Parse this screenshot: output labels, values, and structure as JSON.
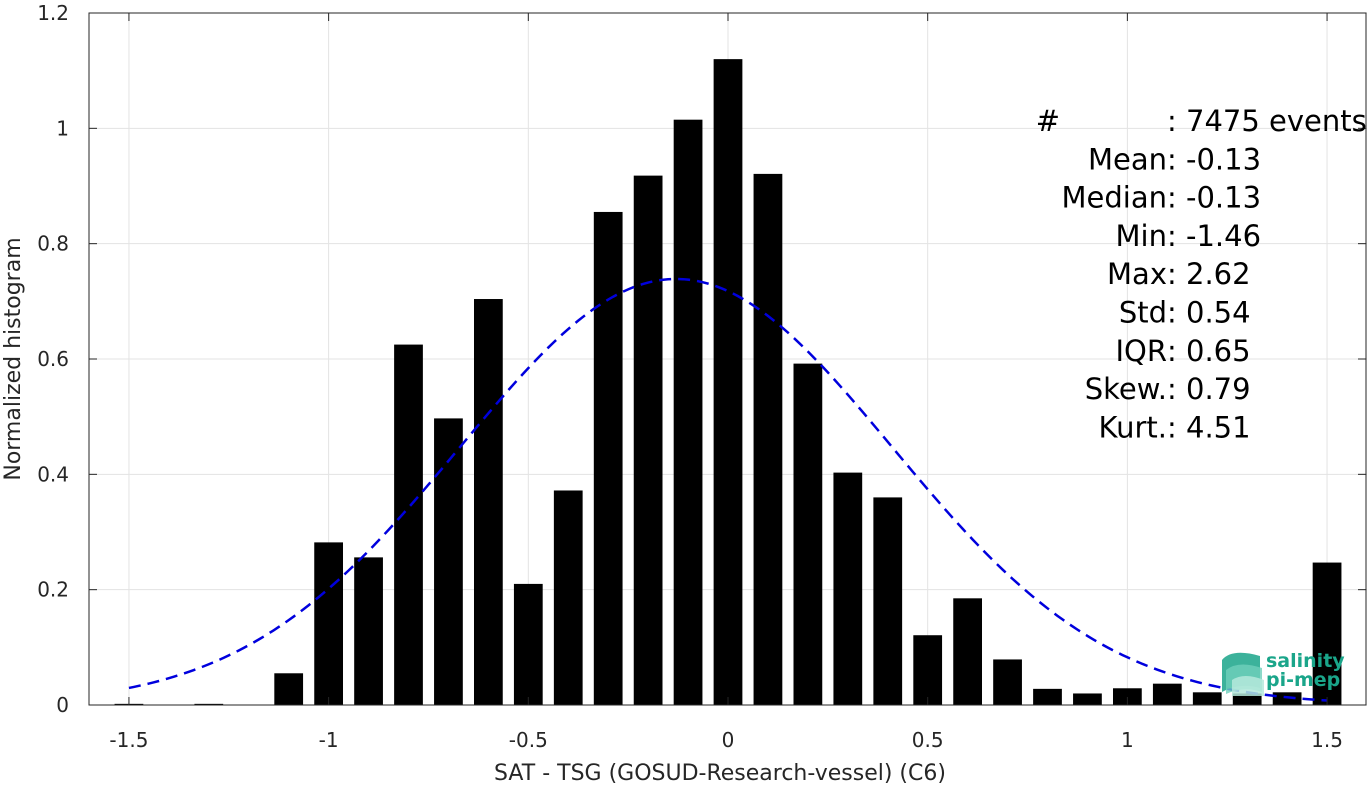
{
  "chart_data": {
    "type": "bar",
    "xlabel": "SAT - TSG (GOSUD-Research-vessel) (C6)",
    "ylabel": "Normalized histogram",
    "xlim": [
      -1.6,
      1.6
    ],
    "ylim": [
      0,
      1.2
    ],
    "xticks": [
      -1.5,
      -1,
      -0.5,
      0,
      0.5,
      1,
      1.5
    ],
    "xtick_labels": [
      "-1.5",
      "-1",
      "-0.5",
      "0",
      "0.5",
      "1",
      "1.5"
    ],
    "yticks": [
      0,
      0.2,
      0.4,
      0.6,
      0.8,
      1,
      1.2
    ],
    "ytick_labels": [
      "0",
      "0.2",
      "0.4",
      "0.6",
      "0.8",
      "1",
      "1.2"
    ],
    "grid": true,
    "bar_color": "#000000",
    "bin_width": 0.1,
    "x": [
      -1.5,
      -1.4,
      -1.3,
      -1.2,
      -1.1,
      -1.0,
      -0.9,
      -0.8,
      -0.7,
      -0.6,
      -0.5,
      -0.4,
      -0.3,
      -0.2,
      -0.1,
      0.0,
      0.1,
      0.2,
      0.3,
      0.4,
      0.5,
      0.6,
      0.7,
      0.8,
      0.9,
      1.0,
      1.1,
      1.2,
      1.3,
      1.4,
      1.5
    ],
    "values": [
      0.002,
      0.0,
      0.002,
      0.0,
      0.055,
      0.282,
      0.256,
      0.625,
      0.497,
      0.704,
      0.21,
      0.372,
      0.855,
      0.918,
      1.015,
      1.12,
      0.921,
      0.592,
      0.403,
      0.36,
      0.121,
      0.185,
      0.079,
      0.028,
      0.02,
      0.029,
      0.037,
      0.022,
      0.02,
      0.022,
      0.247
    ],
    "fit": {
      "type": "gaussian",
      "mean": -0.13,
      "std": 0.54,
      "x_range": [
        -1.5,
        1.5
      ],
      "color": "#0000dd",
      "linestyle": "dashed"
    },
    "annotations": [
      {
        "label": "#  ",
        "value": ": 7475 events"
      },
      {
        "label": "Mean ",
        "value": ": -0.13"
      },
      {
        "label": "Median ",
        "value": ": -0.13"
      },
      {
        "label": "Min ",
        "value": ": -1.46"
      },
      {
        "label": "Max ",
        "value": ": 2.62"
      },
      {
        "label": "Std ",
        "value": ": 0.54"
      },
      {
        "label": "IQR ",
        "value": ": 0.65"
      },
      {
        "label": "Skew. ",
        "value": ": 0.79"
      },
      {
        "label": "Kurt. ",
        "value": ": 4.51"
      }
    ]
  },
  "logo": {
    "line1": "salinity",
    "line2": "pi-mep",
    "color": "#1aa58a"
  }
}
